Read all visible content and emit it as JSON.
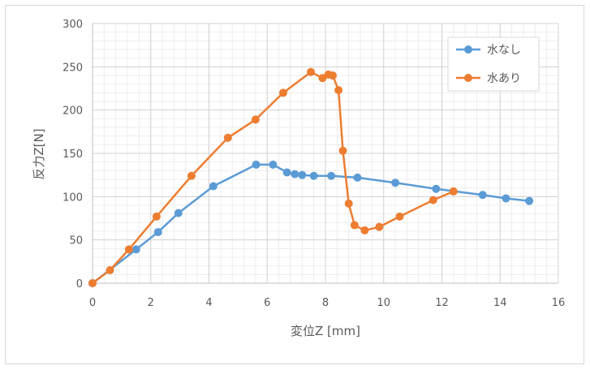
{
  "chart_data": {
    "type": "scatter",
    "xlabel": "変位Z [mm]",
    "ylabel": "反力Z[N]",
    "xlim": [
      0,
      16
    ],
    "ylim": [
      0,
      300
    ],
    "x_ticks": [
      0,
      2,
      4,
      6,
      8,
      10,
      12,
      14,
      16
    ],
    "y_ticks": [
      0,
      50,
      100,
      150,
      200,
      250,
      300
    ],
    "grid": true,
    "legend_position": "top-right",
    "series": [
      {
        "name": "水なし",
        "color": "#5b9bd5",
        "x": [
          0,
          1.5,
          2.25,
          2.95,
          4.15,
          5.62,
          6.2,
          6.68,
          6.95,
          7.2,
          7.6,
          8.2,
          9.1,
          10.4,
          11.8,
          13.4,
          14.2,
          15.0
        ],
        "y": [
          0,
          39,
          59,
          81,
          112,
          137,
          137,
          128,
          126,
          125,
          124,
          124,
          122,
          116,
          109,
          102,
          98,
          95
        ]
      },
      {
        "name": "水あり",
        "color": "#ed7d31",
        "x": [
          0,
          0.6,
          1.25,
          2.2,
          3.4,
          4.65,
          5.6,
          6.55,
          7.5,
          7.9,
          8.1,
          8.25,
          8.45,
          8.6,
          8.8,
          9.0,
          9.35,
          9.85,
          10.55,
          11.7,
          12.4
        ],
        "y": [
          0,
          15,
          39,
          77,
          124,
          168,
          189,
          220,
          244,
          237,
          241,
          240,
          223,
          153,
          92,
          67,
          61,
          65,
          77,
          96,
          106
        ]
      }
    ]
  }
}
